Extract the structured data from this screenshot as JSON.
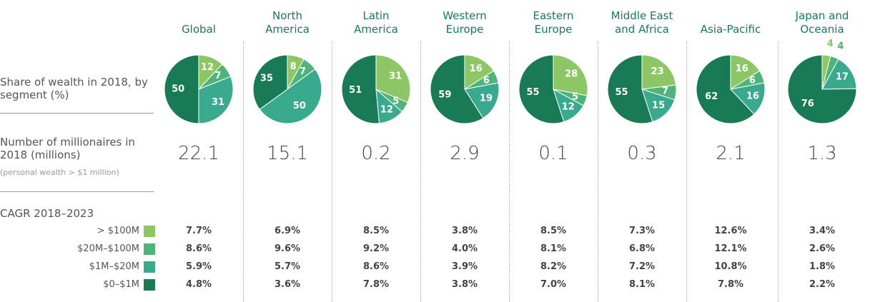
{
  "row_labels": {
    "share": "Share of wealth in 2018, by segment (%)",
    "millionaires": "Number of millionaires in 2018 (millions)",
    "millionaires_note": "(personal wealth > $1 million)",
    "cagr": "CAGR 2018–2023"
  },
  "segments": [
    {
      "name": "> $100M",
      "color": "#8dc665"
    },
    {
      "name": "$20M–$100M",
      "color": "#4fb47a"
    },
    {
      "name": "$1M–$20M",
      "color": "#3aaa8e"
    },
    {
      "name": "$0–$1M",
      "color": "#197a56"
    }
  ],
  "regions": [
    {
      "name": "Global",
      "share": [
        12,
        7,
        31,
        50
      ],
      "millionaires": "22.1",
      "cagr": [
        "7.7%",
        "8.6%",
        "5.9%",
        "4.8%"
      ]
    },
    {
      "name": "North America",
      "share": [
        8,
        7,
        50,
        35
      ],
      "millionaires": "15.1",
      "cagr": [
        "6.9%",
        "9.6%",
        "5.7%",
        "3.6%"
      ]
    },
    {
      "name": "Latin America",
      "share": [
        31,
        5,
        12,
        51
      ],
      "millionaires": "0.2",
      "cagr": [
        "8.5%",
        "9.2%",
        "8.6%",
        "7.8%"
      ]
    },
    {
      "name": "Western Europe",
      "share": [
        16,
        6,
        19,
        59
      ],
      "millionaires": "2.9",
      "cagr": [
        "3.8%",
        "4.0%",
        "3.9%",
        "3.8%"
      ]
    },
    {
      "name": "Eastern Europe",
      "share": [
        28,
        5,
        12,
        55
      ],
      "millionaires": "0.1",
      "cagr": [
        "8.5%",
        "8.1%",
        "8.2%",
        "7.0%"
      ]
    },
    {
      "name": "Middle East and Africa",
      "share": [
        23,
        7,
        15,
        55
      ],
      "millionaires": "0.3",
      "cagr": [
        "7.3%",
        "6.8%",
        "7.2%",
        "8.1%"
      ]
    },
    {
      "name": "Asia-Pacific",
      "share": [
        16,
        6,
        16,
        62
      ],
      "millionaires": "2.1",
      "cagr": [
        "12.6%",
        "12.1%",
        "10.8%",
        "7.8%"
      ]
    },
    {
      "name": "Japan and Oceania",
      "share": [
        4,
        4,
        17,
        76
      ],
      "millionaires": "1.3",
      "cagr": [
        "3.4%",
        "2.6%",
        "1.8%",
        "2.2%"
      ]
    }
  ]
}
